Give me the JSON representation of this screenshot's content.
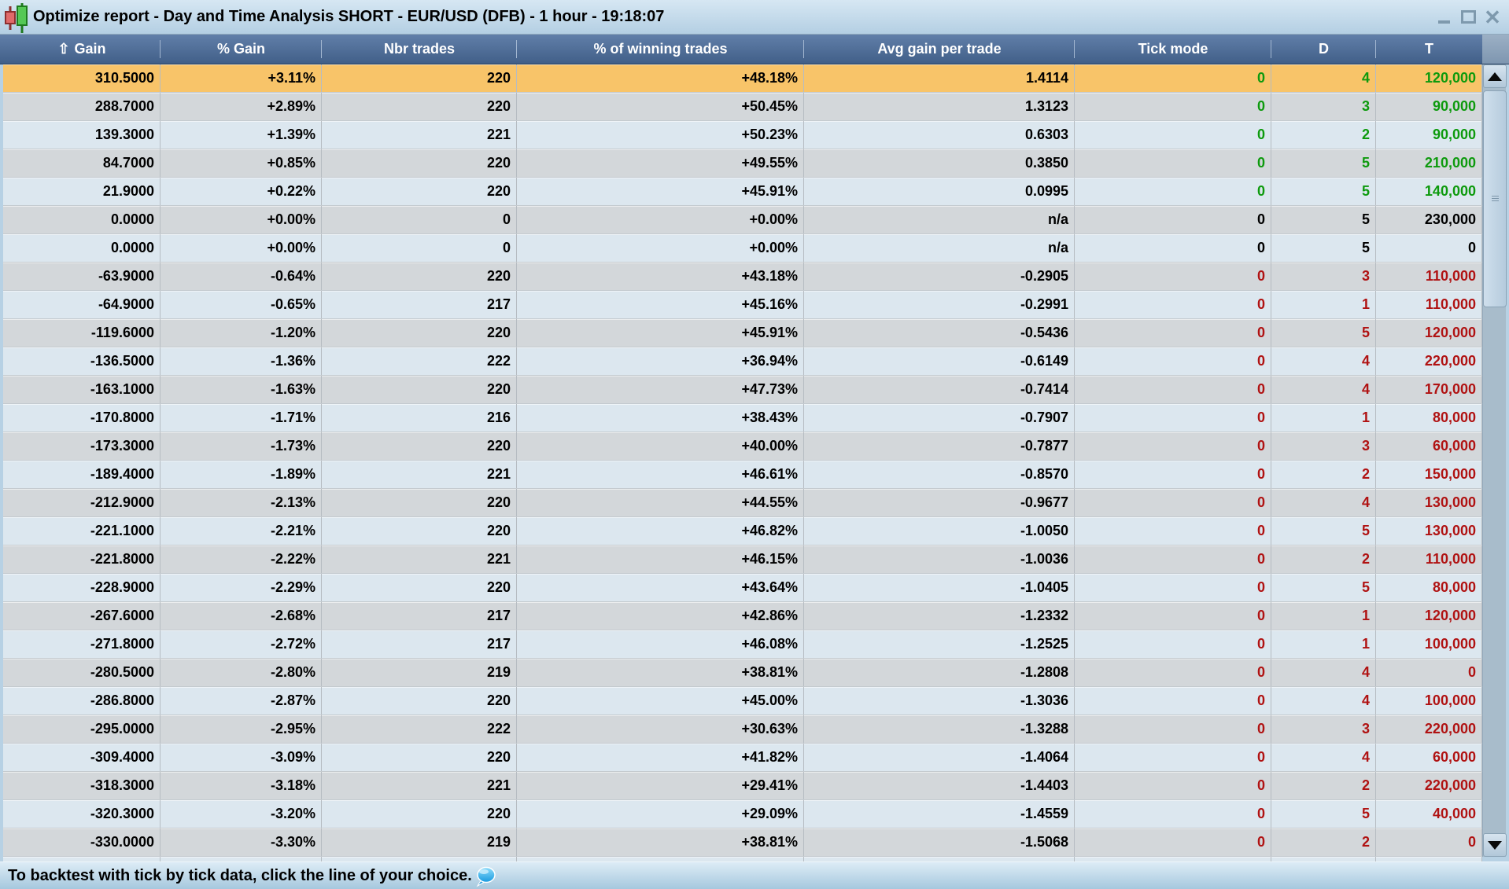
{
  "window": {
    "title": "Optimize report - Day and Time Analysis SHORT - EUR/USD (DFB) - 1 hour - 19:18:07",
    "app_icon": "candlestick-chart-icon",
    "controls": [
      {
        "id": "minimize",
        "icon": "minimize-icon"
      },
      {
        "id": "maximize",
        "icon": "maximize-icon"
      },
      {
        "id": "close",
        "icon": "close-icon"
      }
    ]
  },
  "colors": {
    "selected_row_bg": "#F8C469",
    "row_alt_blue": "#DCE7EF",
    "row_alt_gray": "#D3D7DA",
    "positive_value": "#0D9A0D",
    "negative_value": "#B01212",
    "header_bg_top": "#617FA9",
    "header_bg_bottom": "#415F88",
    "titlebar_bg": "#C5DAEB"
  },
  "table": {
    "columns": [
      {
        "id": "gain",
        "label": "Gain",
        "sort_icon": "⇧"
      },
      {
        "id": "gain_pct",
        "label": "% Gain"
      },
      {
        "id": "nbr_trades",
        "label": "Nbr trades"
      },
      {
        "id": "win_pct",
        "label": "% of winning trades"
      },
      {
        "id": "avg_gain",
        "label": "Avg gain per trade"
      },
      {
        "id": "tick_mode",
        "label": "Tick mode"
      },
      {
        "id": "d",
        "label": "D"
      },
      {
        "id": "t",
        "label": "T"
      }
    ],
    "rows": [
      {
        "gain": "310.5000",
        "gain_pct": "+3.11%",
        "nbr_trades": "220",
        "win_pct": "+48.18%",
        "avg_gain": "1.4114",
        "tick_mode": "0",
        "d": "4",
        "t": "120,000",
        "state": "pos",
        "selected": true
      },
      {
        "gain": "288.7000",
        "gain_pct": "+2.89%",
        "nbr_trades": "220",
        "win_pct": "+50.45%",
        "avg_gain": "1.3123",
        "tick_mode": "0",
        "d": "3",
        "t": "90,000",
        "state": "pos"
      },
      {
        "gain": "139.3000",
        "gain_pct": "+1.39%",
        "nbr_trades": "221",
        "win_pct": "+50.23%",
        "avg_gain": "0.6303",
        "tick_mode": "0",
        "d": "2",
        "t": "90,000",
        "state": "pos"
      },
      {
        "gain": "84.7000",
        "gain_pct": "+0.85%",
        "nbr_trades": "220",
        "win_pct": "+49.55%",
        "avg_gain": "0.3850",
        "tick_mode": "0",
        "d": "5",
        "t": "210,000",
        "state": "pos"
      },
      {
        "gain": "21.9000",
        "gain_pct": "+0.22%",
        "nbr_trades": "220",
        "win_pct": "+45.91%",
        "avg_gain": "0.0995",
        "tick_mode": "0",
        "d": "5",
        "t": "140,000",
        "state": "pos"
      },
      {
        "gain": "0.0000",
        "gain_pct": "+0.00%",
        "nbr_trades": "0",
        "win_pct": "+0.00%",
        "avg_gain": "n/a",
        "tick_mode": "0",
        "d": "5",
        "t": "230,000",
        "state": "zero"
      },
      {
        "gain": "0.0000",
        "gain_pct": "+0.00%",
        "nbr_trades": "0",
        "win_pct": "+0.00%",
        "avg_gain": "n/a",
        "tick_mode": "0",
        "d": "5",
        "t": "0",
        "state": "zero"
      },
      {
        "gain": "-63.9000",
        "gain_pct": "-0.64%",
        "nbr_trades": "220",
        "win_pct": "+43.18%",
        "avg_gain": "-0.2905",
        "tick_mode": "0",
        "d": "3",
        "t": "110,000",
        "state": "neg"
      },
      {
        "gain": "-64.9000",
        "gain_pct": "-0.65%",
        "nbr_trades": "217",
        "win_pct": "+45.16%",
        "avg_gain": "-0.2991",
        "tick_mode": "0",
        "d": "1",
        "t": "110,000",
        "state": "neg"
      },
      {
        "gain": "-119.6000",
        "gain_pct": "-1.20%",
        "nbr_trades": "220",
        "win_pct": "+45.91%",
        "avg_gain": "-0.5436",
        "tick_mode": "0",
        "d": "5",
        "t": "120,000",
        "state": "neg"
      },
      {
        "gain": "-136.5000",
        "gain_pct": "-1.36%",
        "nbr_trades": "222",
        "win_pct": "+36.94%",
        "avg_gain": "-0.6149",
        "tick_mode": "0",
        "d": "4",
        "t": "220,000",
        "state": "neg"
      },
      {
        "gain": "-163.1000",
        "gain_pct": "-1.63%",
        "nbr_trades": "220",
        "win_pct": "+47.73%",
        "avg_gain": "-0.7414",
        "tick_mode": "0",
        "d": "4",
        "t": "170,000",
        "state": "neg"
      },
      {
        "gain": "-170.8000",
        "gain_pct": "-1.71%",
        "nbr_trades": "216",
        "win_pct": "+38.43%",
        "avg_gain": "-0.7907",
        "tick_mode": "0",
        "d": "1",
        "t": "80,000",
        "state": "neg"
      },
      {
        "gain": "-173.3000",
        "gain_pct": "-1.73%",
        "nbr_trades": "220",
        "win_pct": "+40.00%",
        "avg_gain": "-0.7877",
        "tick_mode": "0",
        "d": "3",
        "t": "60,000",
        "state": "neg"
      },
      {
        "gain": "-189.4000",
        "gain_pct": "-1.89%",
        "nbr_trades": "221",
        "win_pct": "+46.61%",
        "avg_gain": "-0.8570",
        "tick_mode": "0",
        "d": "2",
        "t": "150,000",
        "state": "neg"
      },
      {
        "gain": "-212.9000",
        "gain_pct": "-2.13%",
        "nbr_trades": "220",
        "win_pct": "+44.55%",
        "avg_gain": "-0.9677",
        "tick_mode": "0",
        "d": "4",
        "t": "130,000",
        "state": "neg"
      },
      {
        "gain": "-221.1000",
        "gain_pct": "-2.21%",
        "nbr_trades": "220",
        "win_pct": "+46.82%",
        "avg_gain": "-1.0050",
        "tick_mode": "0",
        "d": "5",
        "t": "130,000",
        "state": "neg"
      },
      {
        "gain": "-221.8000",
        "gain_pct": "-2.22%",
        "nbr_trades": "221",
        "win_pct": "+46.15%",
        "avg_gain": "-1.0036",
        "tick_mode": "0",
        "d": "2",
        "t": "110,000",
        "state": "neg"
      },
      {
        "gain": "-228.9000",
        "gain_pct": "-2.29%",
        "nbr_trades": "220",
        "win_pct": "+43.64%",
        "avg_gain": "-1.0405",
        "tick_mode": "0",
        "d": "5",
        "t": "80,000",
        "state": "neg"
      },
      {
        "gain": "-267.6000",
        "gain_pct": "-2.68%",
        "nbr_trades": "217",
        "win_pct": "+42.86%",
        "avg_gain": "-1.2332",
        "tick_mode": "0",
        "d": "1",
        "t": "120,000",
        "state": "neg"
      },
      {
        "gain": "-271.8000",
        "gain_pct": "-2.72%",
        "nbr_trades": "217",
        "win_pct": "+46.08%",
        "avg_gain": "-1.2525",
        "tick_mode": "0",
        "d": "1",
        "t": "100,000",
        "state": "neg"
      },
      {
        "gain": "-280.5000",
        "gain_pct": "-2.80%",
        "nbr_trades": "219",
        "win_pct": "+38.81%",
        "avg_gain": "-1.2808",
        "tick_mode": "0",
        "d": "4",
        "t": "0",
        "state": "neg"
      },
      {
        "gain": "-286.8000",
        "gain_pct": "-2.87%",
        "nbr_trades": "220",
        "win_pct": "+45.00%",
        "avg_gain": "-1.3036",
        "tick_mode": "0",
        "d": "4",
        "t": "100,000",
        "state": "neg"
      },
      {
        "gain": "-295.0000",
        "gain_pct": "-2.95%",
        "nbr_trades": "222",
        "win_pct": "+30.63%",
        "avg_gain": "-1.3288",
        "tick_mode": "0",
        "d": "3",
        "t": "220,000",
        "state": "neg"
      },
      {
        "gain": "-309.4000",
        "gain_pct": "-3.09%",
        "nbr_trades": "220",
        "win_pct": "+41.82%",
        "avg_gain": "-1.4064",
        "tick_mode": "0",
        "d": "4",
        "t": "60,000",
        "state": "neg"
      },
      {
        "gain": "-318.3000",
        "gain_pct": "-3.18%",
        "nbr_trades": "221",
        "win_pct": "+29.41%",
        "avg_gain": "-1.4403",
        "tick_mode": "0",
        "d": "2",
        "t": "220,000",
        "state": "neg"
      },
      {
        "gain": "-320.3000",
        "gain_pct": "-3.20%",
        "nbr_trades": "220",
        "win_pct": "+29.09%",
        "avg_gain": "-1.4559",
        "tick_mode": "0",
        "d": "5",
        "t": "40,000",
        "state": "neg"
      },
      {
        "gain": "-330.0000",
        "gain_pct": "-3.30%",
        "nbr_trades": "219",
        "win_pct": "+38.81%",
        "avg_gain": "-1.5068",
        "tick_mode": "0",
        "d": "2",
        "t": "0",
        "state": "neg"
      }
    ]
  },
  "scrollbar": {
    "up_icon": "scroll-up-arrow-icon",
    "down_icon": "scroll-down-arrow-icon",
    "thumb_icon": "scrollbar-grip-icon"
  },
  "status_bar": {
    "message": "To backtest with tick by tick data, click the line of your choice.",
    "icon": "speech-bubble-icon"
  }
}
